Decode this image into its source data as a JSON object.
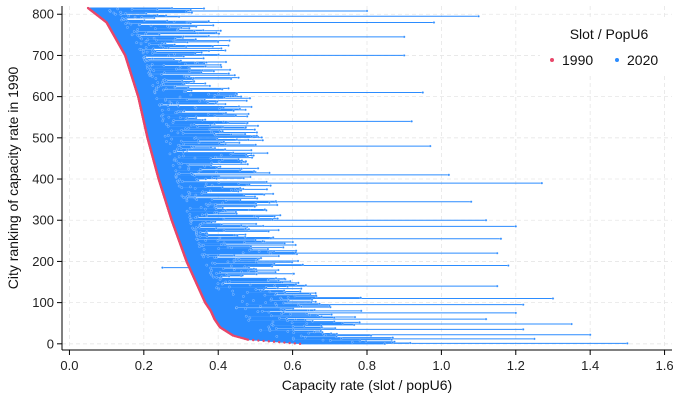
{
  "chart_data": {
    "type": "dumbbell",
    "title": "",
    "xlabel": "Capacity rate (slot / popU6)",
    "ylabel": "City ranking of capacity rate in 1990",
    "xlim": [
      -0.02,
      1.62
    ],
    "ylim": [
      -15,
      820
    ],
    "xticks": [
      0.0,
      0.2,
      0.4,
      0.6,
      0.8,
      1.0,
      1.2,
      1.4,
      1.6
    ],
    "xtick_labels": [
      "0.0",
      "0.2",
      "0.4",
      "0.6",
      "0.8",
      "1.0",
      "1.2",
      "1.4",
      "1.6"
    ],
    "yticks": [
      0,
      100,
      200,
      300,
      400,
      500,
      600,
      700,
      800
    ],
    "ytick_labels": [
      "0",
      "100",
      "200",
      "300",
      "400",
      "500",
      "600",
      "700",
      "800"
    ],
    "grid": true,
    "legend": {
      "title": "Slot / PopU6",
      "position": "top-right",
      "entries": [
        {
          "label": "1990",
          "color": "#e8476a"
        },
        {
          "label": "2020",
          "color": "#2b8cff"
        }
      ]
    },
    "n_cities": 815,
    "series": [
      {
        "name": "1990",
        "color": "#e8476a",
        "curve_rank": [
          0,
          10,
          20,
          40,
          60,
          80,
          100,
          120,
          150,
          200,
          250,
          300,
          400,
          500,
          600,
          700,
          780,
          815
        ],
        "curve_value": [
          0.62,
          0.48,
          0.44,
          0.405,
          0.39,
          0.38,
          0.365,
          0.355,
          0.34,
          0.315,
          0.295,
          0.275,
          0.24,
          0.21,
          0.185,
          0.15,
          0.1,
          0.05
        ]
      },
      {
        "name": "2020",
        "color": "#2b8cff",
        "typical_extension": 0.12,
        "highlighted_cities": [
          {
            "rank": 1,
            "value": 1.5
          },
          {
            "rank": 12,
            "value": 1.25
          },
          {
            "rank": 22,
            "value": 1.4
          },
          {
            "rank": 35,
            "value": 1.22
          },
          {
            "rank": 48,
            "value": 1.35
          },
          {
            "rank": 60,
            "value": 1.12
          },
          {
            "rank": 75,
            "value": 1.2
          },
          {
            "rank": 95,
            "value": 1.22
          },
          {
            "rank": 110,
            "value": 1.3
          },
          {
            "rank": 140,
            "value": 1.15
          },
          {
            "rank": 185,
            "value": 0.25
          },
          {
            "rank": 190,
            "value": 1.18
          },
          {
            "rank": 220,
            "value": 1.15
          },
          {
            "rank": 255,
            "value": 1.16
          },
          {
            "rank": 285,
            "value": 1.2
          },
          {
            "rank": 300,
            "value": 1.12
          },
          {
            "rank": 345,
            "value": 1.08
          },
          {
            "rank": 390,
            "value": 1.27
          },
          {
            "rank": 410,
            "value": 1.02
          },
          {
            "rank": 480,
            "value": 0.97
          },
          {
            "rank": 540,
            "value": 0.92
          },
          {
            "rank": 610,
            "value": 0.95
          },
          {
            "rank": 700,
            "value": 0.9
          },
          {
            "rank": 745,
            "value": 0.9
          },
          {
            "rank": 780,
            "value": 0.98
          },
          {
            "rank": 795,
            "value": 1.1
          },
          {
            "rank": 808,
            "value": 0.8
          }
        ]
      }
    ]
  }
}
